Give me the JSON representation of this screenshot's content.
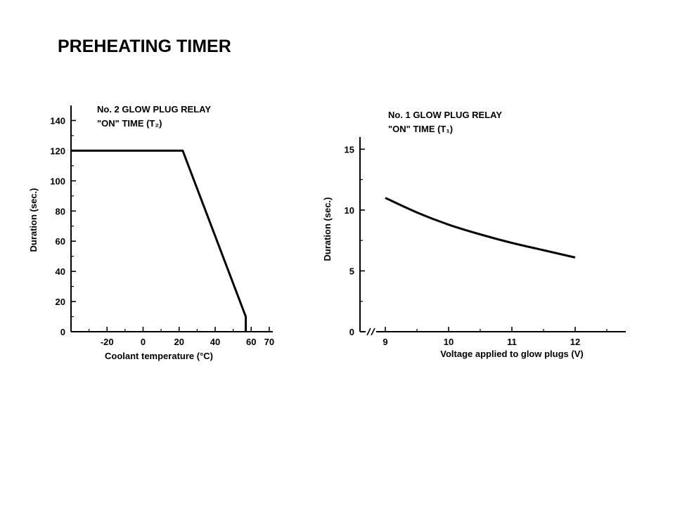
{
  "page": {
    "title": "PREHEATING TIMER"
  },
  "colors": {
    "ink": "#000000",
    "background": "#ffffff"
  },
  "chart_data": [
    {
      "type": "line",
      "title_line1": "No. 2 GLOW PLUG RELAY",
      "title_line2": "\"ON\" TIME (T₂)",
      "xlabel": "Coolant temperature (°C)",
      "ylabel": "Duration (sec.)",
      "xlim": [
        -40,
        72
      ],
      "ylim": [
        0,
        150
      ],
      "x_ticks": [
        -20,
        0,
        20,
        40,
        60,
        70
      ],
      "x_minor_ticks": [
        -30,
        -10,
        10,
        30,
        50
      ],
      "y_ticks": [
        0,
        20,
        40,
        60,
        80,
        100,
        120,
        140
      ],
      "y_minor_ticks": [
        10,
        30,
        50,
        70,
        90,
        110,
        130
      ],
      "series": [
        {
          "x": [
            -40,
            22,
            57,
            57
          ],
          "y": [
            120,
            120,
            10,
            0
          ]
        }
      ]
    },
    {
      "type": "line",
      "title_line1": "No. 1 GLOW PLUG RELAY",
      "title_line2": "\"ON\" TIME (T₁)",
      "xlabel": "Voltage applied to glow plugs (V)",
      "ylabel": "Duration (sec.)",
      "xlim": [
        8.6,
        12.8
      ],
      "ylim": [
        0,
        16
      ],
      "axis_break": true,
      "x_ticks": [
        9,
        10,
        11,
        12
      ],
      "x_minor_ticks": [
        9.5,
        10.5,
        11.5,
        12.5
      ],
      "y_ticks": [
        0,
        5,
        10,
        15
      ],
      "y_minor_ticks": [
        2.5,
        7.5,
        12.5
      ],
      "series": [
        {
          "x": [
            9,
            9.5,
            10,
            10.5,
            11,
            11.5,
            12
          ],
          "y": [
            11,
            9.8,
            8.8,
            8,
            7.3,
            6.7,
            6.1
          ]
        }
      ]
    }
  ]
}
